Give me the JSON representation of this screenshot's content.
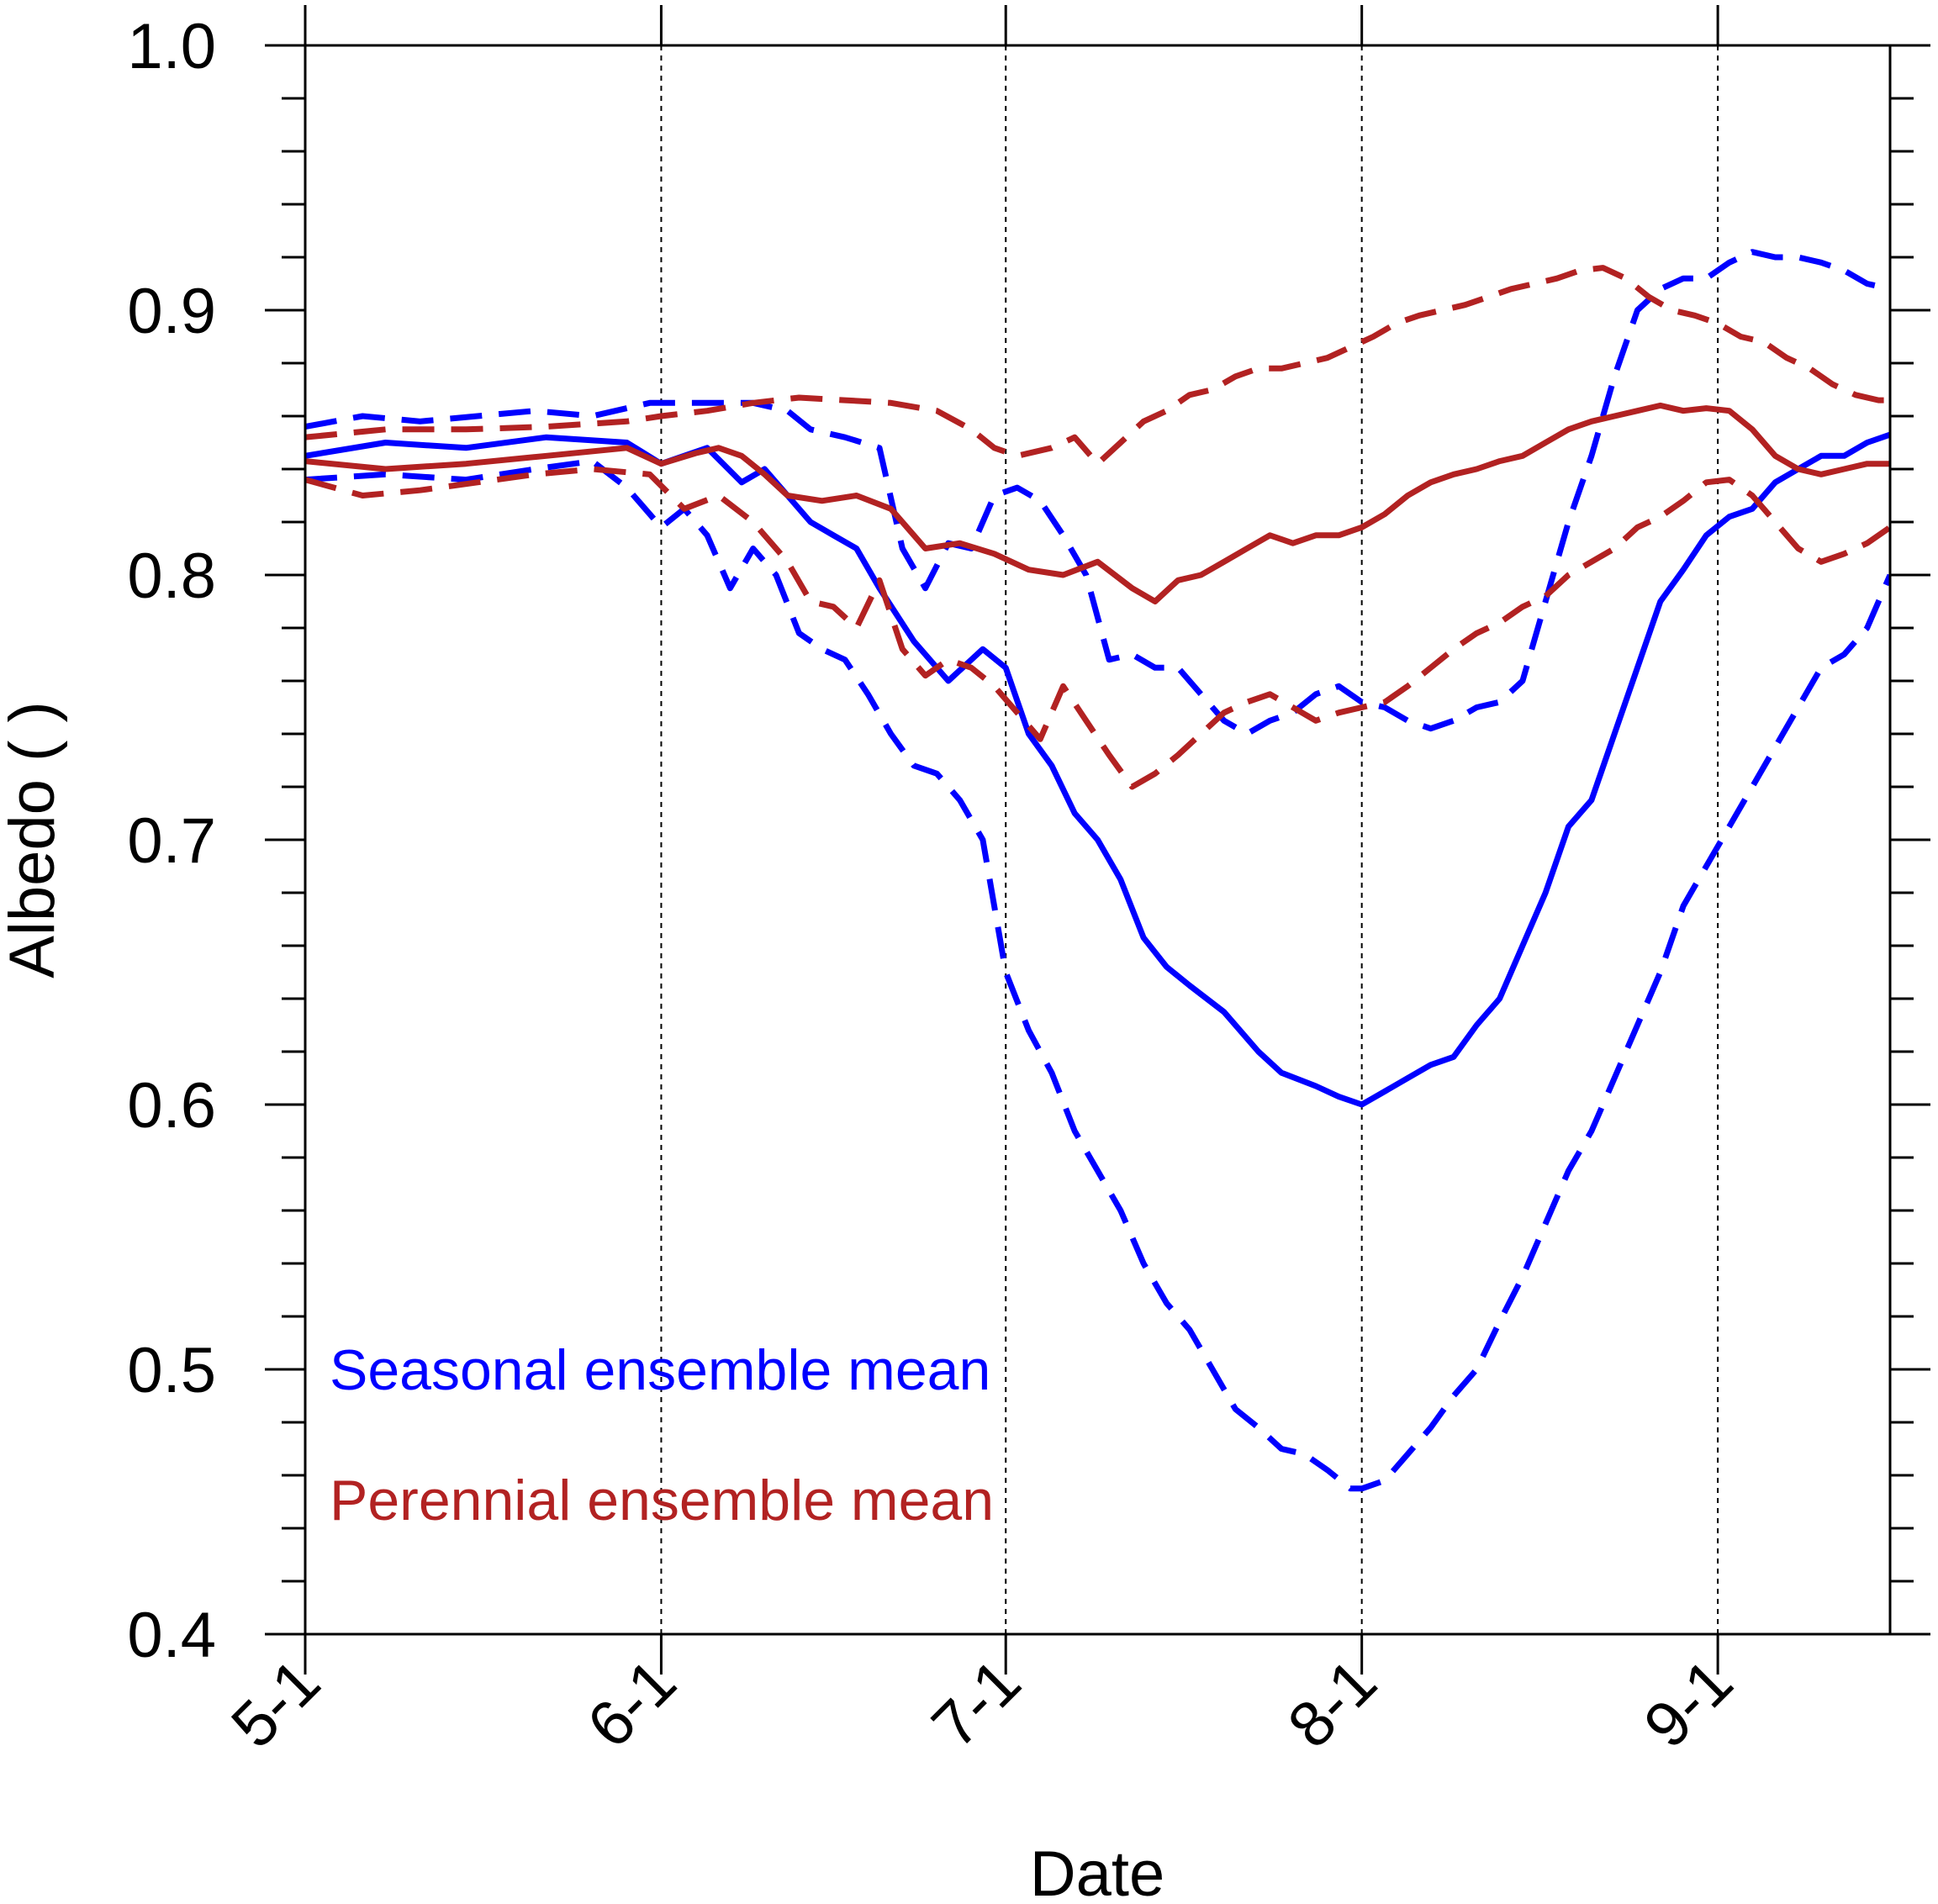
{
  "chart_data": {
    "type": "line",
    "xlabel": "Date",
    "ylabel": "Albedo ( )",
    "xlim": [
      "5-1",
      "9-16"
    ],
    "ylim": [
      0.4,
      1.0
    ],
    "y_major_ticks": [
      "0.4",
      "0.5",
      "0.6",
      "0.7",
      "0.8",
      "0.9",
      "1.0"
    ],
    "y_minor_step": 0.02,
    "x_ticks": [
      {
        "label": "5-1",
        "day": 0
      },
      {
        "label": "6-1",
        "day": 31
      },
      {
        "label": "7-1",
        "day": 61
      },
      {
        "label": "8-1",
        "day": 92
      },
      {
        "label": "9-1",
        "day": 123
      }
    ],
    "x_end_day": 138,
    "vertical_gridlines": [
      "6-1",
      "7-1",
      "8-1",
      "9-1"
    ],
    "grid": "dotted vertical lines at month starts",
    "legend_text": [
      {
        "text": "Seasonal ensemble mean",
        "color": "#0000ff"
      },
      {
        "text": "Perennial ensemble mean",
        "color": "#b22222"
      }
    ],
    "legend_placement": "bottom-left",
    "series": [
      {
        "color": "#0000ff",
        "style": "solid",
        "days": [
          0,
          7,
          14,
          21,
          28,
          31,
          35,
          38,
          40,
          42,
          44,
          46,
          48,
          50,
          53,
          56,
          59,
          61,
          63,
          65,
          67,
          69,
          71,
          73,
          75,
          77,
          80,
          83,
          85,
          88,
          90,
          92,
          94,
          96,
          98,
          100,
          102,
          104,
          106,
          108,
          110,
          112,
          114,
          116,
          118,
          120,
          122,
          124,
          126,
          128,
          130,
          132,
          134,
          136,
          138
        ],
        "values": [
          0.845,
          0.85,
          0.848,
          0.852,
          0.85,
          0.842,
          0.848,
          0.835,
          0.84,
          0.83,
          0.82,
          0.815,
          0.81,
          0.795,
          0.775,
          0.76,
          0.772,
          0.765,
          0.74,
          0.728,
          0.71,
          0.7,
          0.685,
          0.663,
          0.652,
          0.645,
          0.635,
          0.62,
          0.612,
          0.607,
          0.603,
          0.6,
          0.605,
          0.61,
          0.615,
          0.618,
          0.63,
          0.64,
          0.66,
          0.68,
          0.705,
          0.715,
          0.74,
          0.765,
          0.79,
          0.802,
          0.815,
          0.822,
          0.825,
          0.835,
          0.84,
          0.845,
          0.845,
          0.85,
          0.853
        ]
      },
      {
        "color": "#0000ff",
        "style": "dash-upper",
        "days": [
          0,
          5,
          10,
          15,
          20,
          25,
          30,
          33,
          36,
          39,
          42,
          44,
          47,
          50,
          52,
          54,
          56,
          58,
          60,
          62,
          64,
          66,
          68,
          70,
          72,
          74,
          76,
          78,
          80,
          82,
          84,
          86,
          88,
          90,
          92,
          94,
          96,
          98,
          100,
          102,
          104,
          106,
          108,
          110,
          112,
          114,
          116,
          118,
          120,
          122,
          124,
          126,
          128,
          130,
          132,
          134,
          136,
          138
        ],
        "values": [
          0.856,
          0.86,
          0.858,
          0.86,
          0.862,
          0.86,
          0.865,
          0.865,
          0.865,
          0.865,
          0.862,
          0.855,
          0.852,
          0.848,
          0.81,
          0.795,
          0.812,
          0.81,
          0.83,
          0.833,
          0.828,
          0.815,
          0.8,
          0.768,
          0.77,
          0.765,
          0.765,
          0.755,
          0.745,
          0.74,
          0.745,
          0.748,
          0.755,
          0.758,
          0.752,
          0.75,
          0.745,
          0.742,
          0.745,
          0.75,
          0.752,
          0.76,
          0.79,
          0.82,
          0.845,
          0.875,
          0.9,
          0.908,
          0.912,
          0.912,
          0.918,
          0.922,
          0.92,
          0.92,
          0.918,
          0.915,
          0.91,
          0.908
        ]
      },
      {
        "color": "#0000ff",
        "style": "dash-lower",
        "days": [
          0,
          7,
          14,
          20,
          25,
          28,
          31,
          33,
          35,
          37,
          39,
          41,
          43,
          45,
          47,
          49,
          51,
          53,
          55,
          57,
          59,
          61,
          63,
          65,
          67,
          69,
          71,
          73,
          75,
          77,
          79,
          81,
          83,
          85,
          87,
          89,
          91,
          92,
          94,
          96,
          98,
          100,
          102,
          104,
          106,
          108,
          110,
          112,
          114,
          116,
          118,
          120,
          122,
          124,
          126,
          128,
          130,
          132,
          134,
          136,
          138
        ],
        "values": [
          0.836,
          0.838,
          0.836,
          0.84,
          0.843,
          0.833,
          0.818,
          0.825,
          0.815,
          0.795,
          0.81,
          0.8,
          0.778,
          0.772,
          0.768,
          0.755,
          0.74,
          0.728,
          0.725,
          0.715,
          0.7,
          0.65,
          0.628,
          0.612,
          0.59,
          0.575,
          0.56,
          0.54,
          0.525,
          0.515,
          0.5,
          0.485,
          0.478,
          0.47,
          0.468,
          0.462,
          0.455,
          0.455,
          0.458,
          0.468,
          0.478,
          0.49,
          0.5,
          0.518,
          0.535,
          0.555,
          0.575,
          0.59,
          0.61,
          0.63,
          0.65,
          0.675,
          0.69,
          0.705,
          0.72,
          0.735,
          0.75,
          0.765,
          0.77,
          0.78,
          0.8
        ]
      },
      {
        "color": "#b22222",
        "style": "solid",
        "days": [
          0,
          7,
          14,
          21,
          28,
          31,
          34,
          36,
          38,
          40,
          42,
          45,
          48,
          51,
          54,
          57,
          60,
          63,
          66,
          69,
          72,
          74,
          76,
          78,
          80,
          82,
          84,
          86,
          88,
          90,
          92,
          94,
          96,
          98,
          100,
          102,
          104,
          106,
          108,
          110,
          112,
          114,
          116,
          118,
          120,
          122,
          124,
          126,
          128,
          130,
          132,
          134,
          136,
          138
        ],
        "values": [
          0.843,
          0.84,
          0.842,
          0.845,
          0.848,
          0.842,
          0.846,
          0.848,
          0.845,
          0.838,
          0.83,
          0.828,
          0.83,
          0.825,
          0.81,
          0.812,
          0.808,
          0.802,
          0.8,
          0.805,
          0.795,
          0.79,
          0.798,
          0.8,
          0.805,
          0.81,
          0.815,
          0.812,
          0.815,
          0.815,
          0.818,
          0.823,
          0.83,
          0.835,
          0.838,
          0.84,
          0.843,
          0.845,
          0.85,
          0.855,
          0.858,
          0.86,
          0.862,
          0.864,
          0.862,
          0.863,
          0.862,
          0.855,
          0.845,
          0.84,
          0.838,
          0.84,
          0.842,
          0.842
        ]
      },
      {
        "color": "#b22222",
        "style": "dash-upper",
        "days": [
          0,
          7,
          14,
          21,
          28,
          31,
          35,
          39,
          43,
          47,
          51,
          55,
          58,
          60,
          62,
          65,
          67,
          69,
          71,
          73,
          75,
          77,
          79,
          81,
          83,
          85,
          87,
          89,
          91,
          93,
          95,
          97,
          99,
          101,
          103,
          105,
          107,
          109,
          111,
          113,
          115,
          117,
          119,
          121,
          123,
          125,
          127,
          129,
          131,
          133,
          135,
          137,
          138
        ],
        "values": [
          0.852,
          0.855,
          0.855,
          0.856,
          0.858,
          0.86,
          0.862,
          0.865,
          0.867,
          0.866,
          0.865,
          0.862,
          0.855,
          0.848,
          0.845,
          0.848,
          0.852,
          0.842,
          0.85,
          0.858,
          0.862,
          0.868,
          0.87,
          0.875,
          0.878,
          0.878,
          0.88,
          0.882,
          0.886,
          0.89,
          0.895,
          0.898,
          0.9,
          0.902,
          0.905,
          0.908,
          0.91,
          0.912,
          0.915,
          0.916,
          0.912,
          0.905,
          0.9,
          0.898,
          0.895,
          0.89,
          0.888,
          0.882,
          0.878,
          0.872,
          0.868,
          0.866,
          0.866
        ]
      },
      {
        "color": "#b22222",
        "style": "dash-lower",
        "days": [
          0,
          5,
          10,
          15,
          20,
          25,
          30,
          33,
          36,
          39,
          42,
          44,
          46,
          48,
          50,
          52,
          54,
          56,
          58,
          60,
          62,
          64,
          66,
          68,
          70,
          72,
          74,
          76,
          78,
          80,
          82,
          84,
          86,
          88,
          90,
          92,
          94,
          96,
          98,
          100,
          102,
          104,
          106,
          108,
          110,
          112,
          114,
          116,
          118,
          120,
          122,
          124,
          126,
          128,
          130,
          132,
          134,
          136,
          138
        ],
        "values": [
          0.836,
          0.83,
          0.832,
          0.835,
          0.838,
          0.84,
          0.838,
          0.825,
          0.83,
          0.82,
          0.805,
          0.79,
          0.788,
          0.78,
          0.798,
          0.772,
          0.762,
          0.768,
          0.765,
          0.758,
          0.748,
          0.738,
          0.758,
          0.745,
          0.732,
          0.72,
          0.725,
          0.732,
          0.74,
          0.748,
          0.752,
          0.755,
          0.75,
          0.745,
          0.748,
          0.75,
          0.752,
          0.758,
          0.765,
          0.772,
          0.778,
          0.782,
          0.788,
          0.792,
          0.8,
          0.805,
          0.81,
          0.818,
          0.822,
          0.828,
          0.835,
          0.836,
          0.83,
          0.82,
          0.81,
          0.805,
          0.808,
          0.812,
          0.818
        ]
      }
    ]
  }
}
